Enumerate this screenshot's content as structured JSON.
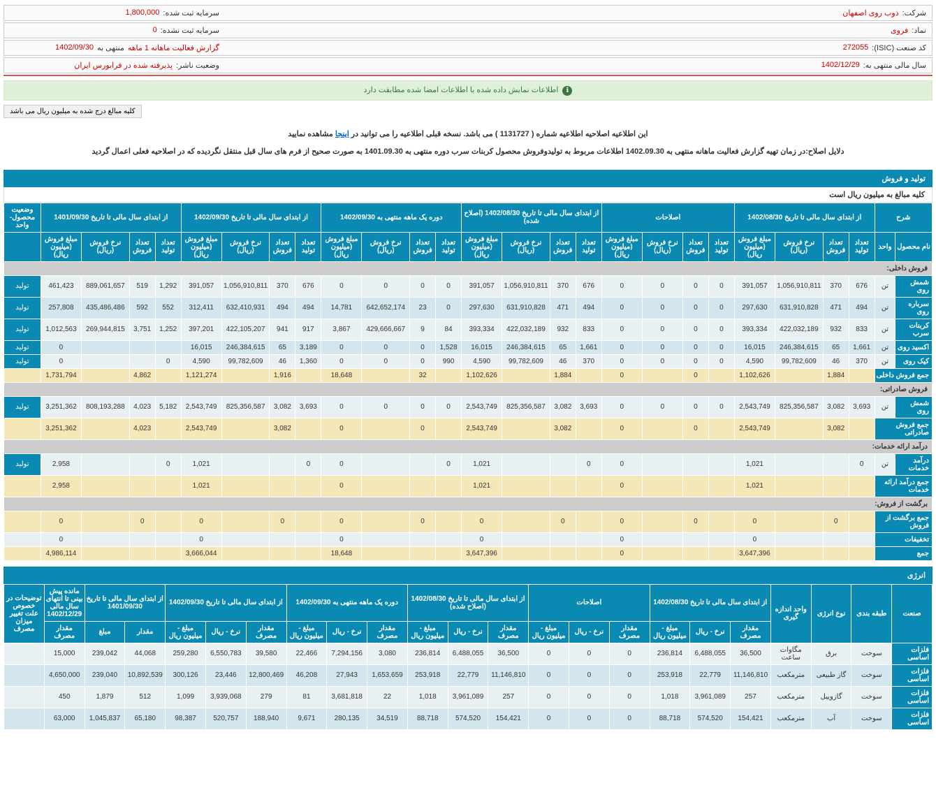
{
  "header": {
    "company_label": "شرکت:",
    "company_value": "ذوب روی اصفهان",
    "capital_reg_label": "سرمایه ثبت شده:",
    "capital_reg_value": "1,800,000",
    "symbol_label": "نماد:",
    "symbol_value": "فروی",
    "capital_unreg_label": "سرمایه ثبت نشده:",
    "capital_unreg_value": "0",
    "isic_label": "کد صنعت (ISIC):",
    "isic_value": "272055",
    "report_label": "گزارش فعالیت ماهانه 1 ماهه",
    "report_suffix": "منتهی به",
    "report_date": "1402/09/30",
    "year_label": "سال مالی منتهی به:",
    "year_value": "1402/12/29",
    "publisher_label": "وضعیت ناشر:",
    "publisher_value": "پذیرفته شده در فرابورس ایران"
  },
  "alerts": {
    "green": "اطلاعات نمایش داده شده با اطلاعات امضا شده مطابقت دارد",
    "btn": "کلیه مبالغ درج شده به میلیون ریال می باشد",
    "note1a": "این اطلاعیه اصلاحیه اطلاعیه شماره ( 1131727 ) می باشد. نسخه قبلی اطلاعیه را می توانید در ",
    "note1b": "اینجا",
    "note1c": " مشاهده نمایید",
    "note2": "دلایل اصلاح:در زمان تهیه گزارش فعالیت ماهانه منتهی به 1402.09.30 اطلاعات مربوط به تولیدوفروش محصول کربنات سرب دوره منتهی به 1401.09.30 به صورت صحیح از فرم های سال قبل منتقل نگردیده که در اصلاحیه فعلی اعمال گردید"
  },
  "section1": {
    "title": "تولید و فروش",
    "subnote": "کلیه مبالغ به میلیون ریال است"
  },
  "t1": {
    "hdr_groups": [
      "شرح",
      "از ابتدای سال مالی تا تاریخ 1402/08/30",
      "اصلاحات",
      "از ابتدای سال مالی تا تاریخ 1402/08/30 (اصلاح شده)",
      "دوره یک ماهه منتهی به 1402/09/30",
      "از ابتدای سال مالی تا تاریخ 1402/09/30",
      "از ابتدای سال مالی تا تاریخ 1401/09/30",
      "وضعیت محصول-واحد"
    ],
    "sub1": "نام محصول",
    "sub2": "واحد",
    "c_prod": "تعداد تولید",
    "c_sale": "تعداد فروش",
    "c_rate": "نرخ فروش (ریال)",
    "c_amt": "مبلغ فروش (میلیون ریال)",
    "sections": {
      "s1": "فروش داخلی:",
      "s2": "فروش صادراتی:",
      "s3": "درآمد ارائه خدمات:",
      "s4": "برگشت از فروش:",
      "sumInt": "جمع فروش داخلی",
      "sumExp": "جمع فروش صادراتی",
      "sumSvc": "جمع درآمد ارائه خدمات",
      "sumRet": "جمع برگشت از فروش",
      "disc": "تخفیفات",
      "total": "جمع"
    },
    "rows": [
      {
        "name": "شمش روی",
        "unit": "تن",
        "g1": [
          "676",
          "370",
          "1,056,910,811",
          "391,057"
        ],
        "g2": [
          "0",
          "0",
          "0",
          "0"
        ],
        "g3": [
          "676",
          "370",
          "1,056,910,811",
          "391,057"
        ],
        "g4": [
          "0",
          "0",
          "0",
          "0"
        ],
        "g5": [
          "676",
          "370",
          "1,056,910,811",
          "391,057"
        ],
        "g6": [
          "1,292",
          "519",
          "889,061,657",
          "461,423"
        ],
        "status": "تولید"
      },
      {
        "name": "سرباره روی",
        "unit": "تن",
        "g1": [
          "494",
          "471",
          "631,910,828",
          "297,630"
        ],
        "g2": [
          "0",
          "0",
          "0",
          "0"
        ],
        "g3": [
          "494",
          "471",
          "631,910,828",
          "297,630"
        ],
        "g4": [
          "0",
          "23",
          "642,652,174",
          "14,781"
        ],
        "g5": [
          "494",
          "494",
          "632,410,931",
          "312,411"
        ],
        "g6": [
          "552",
          "592",
          "435,486,486",
          "257,808"
        ],
        "status": "تولید"
      },
      {
        "name": "کربنات سرب",
        "unit": "تن",
        "g1": [
          "833",
          "932",
          "422,032,189",
          "393,334"
        ],
        "g2": [
          "0",
          "0",
          "0",
          "0"
        ],
        "g3": [
          "833",
          "932",
          "422,032,189",
          "393,334"
        ],
        "g4": [
          "84",
          "9",
          "429,666,667",
          "3,867"
        ],
        "g5": [
          "917",
          "941",
          "422,105,207",
          "397,201"
        ],
        "g6": [
          "1,252",
          "3,751",
          "269,944,815",
          "1,012,563"
        ],
        "status": "تولید"
      },
      {
        "name": "اکسید روی",
        "unit": "تن",
        "g1": [
          "1,661",
          "65",
          "246,384,615",
          "16,015"
        ],
        "g2": [
          "0",
          "0",
          "0",
          "0"
        ],
        "g3": [
          "1,661",
          "65",
          "246,384,615",
          "16,015"
        ],
        "g4": [
          "1,528",
          "0",
          "0",
          "0"
        ],
        "g5": [
          "3,189",
          "65",
          "246,384,615",
          "16,015"
        ],
        "g6": [
          "",
          "",
          "",
          "0"
        ],
        "status": "تولید"
      },
      {
        "name": "کیک روی",
        "unit": "تن",
        "g1": [
          "370",
          "46",
          "99,782,609",
          "4,590"
        ],
        "g2": [
          "0",
          "0",
          "0",
          "0"
        ],
        "g3": [
          "370",
          "46",
          "99,782,609",
          "4,590"
        ],
        "g4": [
          "990",
          "0",
          "0",
          "0"
        ],
        "g5": [
          "1,360",
          "46",
          "99,782,609",
          "4,590"
        ],
        "g6": [
          "0",
          "",
          "",
          "0"
        ],
        "status": "تولید"
      }
    ],
    "sum_int": {
      "g1": [
        "",
        "1,884",
        "",
        "1,102,626"
      ],
      "g2": [
        "",
        "0",
        "",
        "0"
      ],
      "g3": [
        "",
        "1,884",
        "",
        "1,102,626"
      ],
      "g4": [
        "",
        "32",
        "",
        "18,648"
      ],
      "g5": [
        "",
        "1,916",
        "",
        "1,121,274"
      ],
      "g6": [
        "",
        "4,862",
        "",
        "1,731,794"
      ]
    },
    "row_exp": {
      "name": "شمش روی",
      "unit": "تن",
      "g1": [
        "3,693",
        "3,082",
        "825,356,587",
        "2,543,749"
      ],
      "g2": [
        "0",
        "0",
        "0",
        "0"
      ],
      "g3": [
        "3,693",
        "3,082",
        "825,356,587",
        "2,543,749"
      ],
      "g4": [
        "0",
        "0",
        "0",
        "0"
      ],
      "g5": [
        "3,693",
        "3,082",
        "825,356,587",
        "2,543,749"
      ],
      "g6": [
        "5,182",
        "4,023",
        "808,193,288",
        "3,251,362"
      ],
      "status": "تولید"
    },
    "sum_exp": {
      "g1": [
        "",
        "3,082",
        "",
        "2,543,749"
      ],
      "g2": [
        "",
        "0",
        "",
        "0"
      ],
      "g3": [
        "",
        "3,082",
        "",
        "2,543,749"
      ],
      "g4": [
        "",
        "0",
        "",
        "0"
      ],
      "g5": [
        "",
        "3,082",
        "",
        "2,543,749"
      ],
      "g6": [
        "",
        "4,023",
        "",
        "3,251,362"
      ]
    },
    "row_svc": {
      "name": "درآمد خدمات",
      "unit": "تن",
      "g1": [
        "0",
        "",
        "",
        "1,021"
      ],
      "g2": [
        "",
        "",
        "",
        "0"
      ],
      "g3": [
        "0",
        "",
        "",
        "1,021"
      ],
      "g4": [
        "0",
        "",
        "",
        "0"
      ],
      "g5": [
        "0",
        "",
        "",
        "1,021"
      ],
      "g6": [
        "0",
        "",
        "",
        "2,958"
      ],
      "status": "تولید"
    },
    "sum_svc": {
      "g1": [
        "",
        "",
        "",
        "1,021"
      ],
      "g2": [
        "",
        "",
        "",
        "0"
      ],
      "g3": [
        "",
        "",
        "",
        "1,021"
      ],
      "g4": [
        "",
        "",
        "",
        "0"
      ],
      "g5": [
        "",
        "",
        "",
        "1,021"
      ],
      "g6": [
        "",
        "",
        "",
        "2,958"
      ]
    },
    "sum_ret": {
      "g1": [
        "",
        "0",
        "",
        "0"
      ],
      "g2": [
        "",
        "0",
        "",
        "0"
      ],
      "g3": [
        "",
        "0",
        "",
        "0"
      ],
      "g4": [
        "",
        "0",
        "",
        "0"
      ],
      "g5": [
        "",
        "0",
        "",
        "0"
      ],
      "g6": [
        "",
        "0",
        "",
        "0"
      ]
    },
    "disc": {
      "g1": "0",
      "g2": "0",
      "g3": "0",
      "g4": "0",
      "g5": "0",
      "g6": "0"
    },
    "total": {
      "g1": "3,647,396",
      "g2": "0",
      "g3": "3,647,396",
      "g4": "18,648",
      "g5": "3,666,044",
      "g6": "4,986,114"
    }
  },
  "section2": {
    "title": "انرژی"
  },
  "t2": {
    "hdr_groups": [
      "صنعت",
      "طبقه بندی",
      "نوع انرژی",
      "واحد اندازه گیری",
      "از ابتدای سال مالی تا تاریخ 1402/08/30",
      "اصلاحات",
      "از ابتدای سال مالی تا تاریخ 1402/08/30 (اصلاح شده)",
      "دوره یک ماهه منتهی به 1402/09/30",
      "از ابتدای سال مالی تا تاریخ 1402/09/30",
      "از ابتدای سال مالی تا تاریخ 1401/09/30",
      "مانده پیش بینی تا انتهای سال مالی 1402/12/29",
      "توضیحات در خصوص علت تغییر میزان مصرف"
    ],
    "c_use": "مقدار مصرف",
    "c_rate": "نرخ - ریال",
    "c_amt": "مبلغ - میلیون ریال",
    "c_qty": "مقدار",
    "c_price": "مبلغ",
    "rows": [
      {
        "ind": "فلزات اساسی",
        "cls": "سوخت",
        "type": "برق",
        "unit": "مگاوات ساعت",
        "g1": [
          "36,500",
          "6,488,055",
          "236,814"
        ],
        "g2": [
          "0",
          "0",
          "0"
        ],
        "g3": [
          "36,500",
          "6,488,055",
          "236,814"
        ],
        "g4": [
          "3,080",
          "7,294,156",
          "22,466"
        ],
        "g5": [
          "39,580",
          "6,550,783",
          "259,280"
        ],
        "g6": [
          "44,068",
          "239,042"
        ],
        "fc": "15,000",
        "note": ""
      },
      {
        "ind": "فلزات اساسی",
        "cls": "سوخت",
        "type": "گاز طبیعی",
        "unit": "مترمکعب",
        "g1": [
          "11,146,810",
          "22,779",
          "253,918"
        ],
        "g2": [
          "0",
          "0",
          "0"
        ],
        "g3": [
          "11,146,810",
          "22,779",
          "253,918"
        ],
        "g4": [
          "1,653,659",
          "27,943",
          "46,208"
        ],
        "g5": [
          "12,800,469",
          "23,446",
          "300,126"
        ],
        "g6": [
          "10,892,539",
          "239,040"
        ],
        "fc": "4,650,000",
        "note": ""
      },
      {
        "ind": "فلزات اساسی",
        "cls": "سوخت",
        "type": "گازوییل",
        "unit": "مترمکعب",
        "g1": [
          "257",
          "3,961,089",
          "1,018"
        ],
        "g2": [
          "0",
          "0",
          "0"
        ],
        "g3": [
          "257",
          "3,961,089",
          "1,018"
        ],
        "g4": [
          "22",
          "3,681,818",
          "81"
        ],
        "g5": [
          "279",
          "3,939,068",
          "1,099"
        ],
        "g6": [
          "512",
          "1,879"
        ],
        "fc": "450",
        "note": ""
      },
      {
        "ind": "فلزات اساسی",
        "cls": "سوخت",
        "type": "آب",
        "unit": "مترمکعب",
        "g1": [
          "154,421",
          "574,520",
          "88,718"
        ],
        "g2": [
          "0",
          "0",
          "0"
        ],
        "g3": [
          "154,421",
          "574,520",
          "88,718"
        ],
        "g4": [
          "34,519",
          "280,135",
          "9,671"
        ],
        "g5": [
          "188,940",
          "520,757",
          "98,387"
        ],
        "g6": [
          "65,180",
          "1,045,837"
        ],
        "fc": "63,000",
        "note": ""
      }
    ]
  }
}
